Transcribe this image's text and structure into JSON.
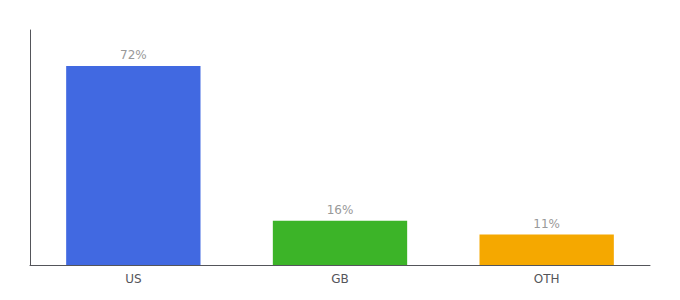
{
  "chart_data": {
    "type": "bar",
    "categories": [
      "US",
      "GB",
      "OTH"
    ],
    "values": [
      72,
      16,
      11
    ],
    "value_labels": [
      "72%",
      "16%",
      "11%"
    ],
    "colors": [
      "#4169e1",
      "#3cb428",
      "#f5a800"
    ],
    "ylim": [
      0,
      85
    ],
    "data_labels": true,
    "tick_labels": "x",
    "grid": false
  }
}
